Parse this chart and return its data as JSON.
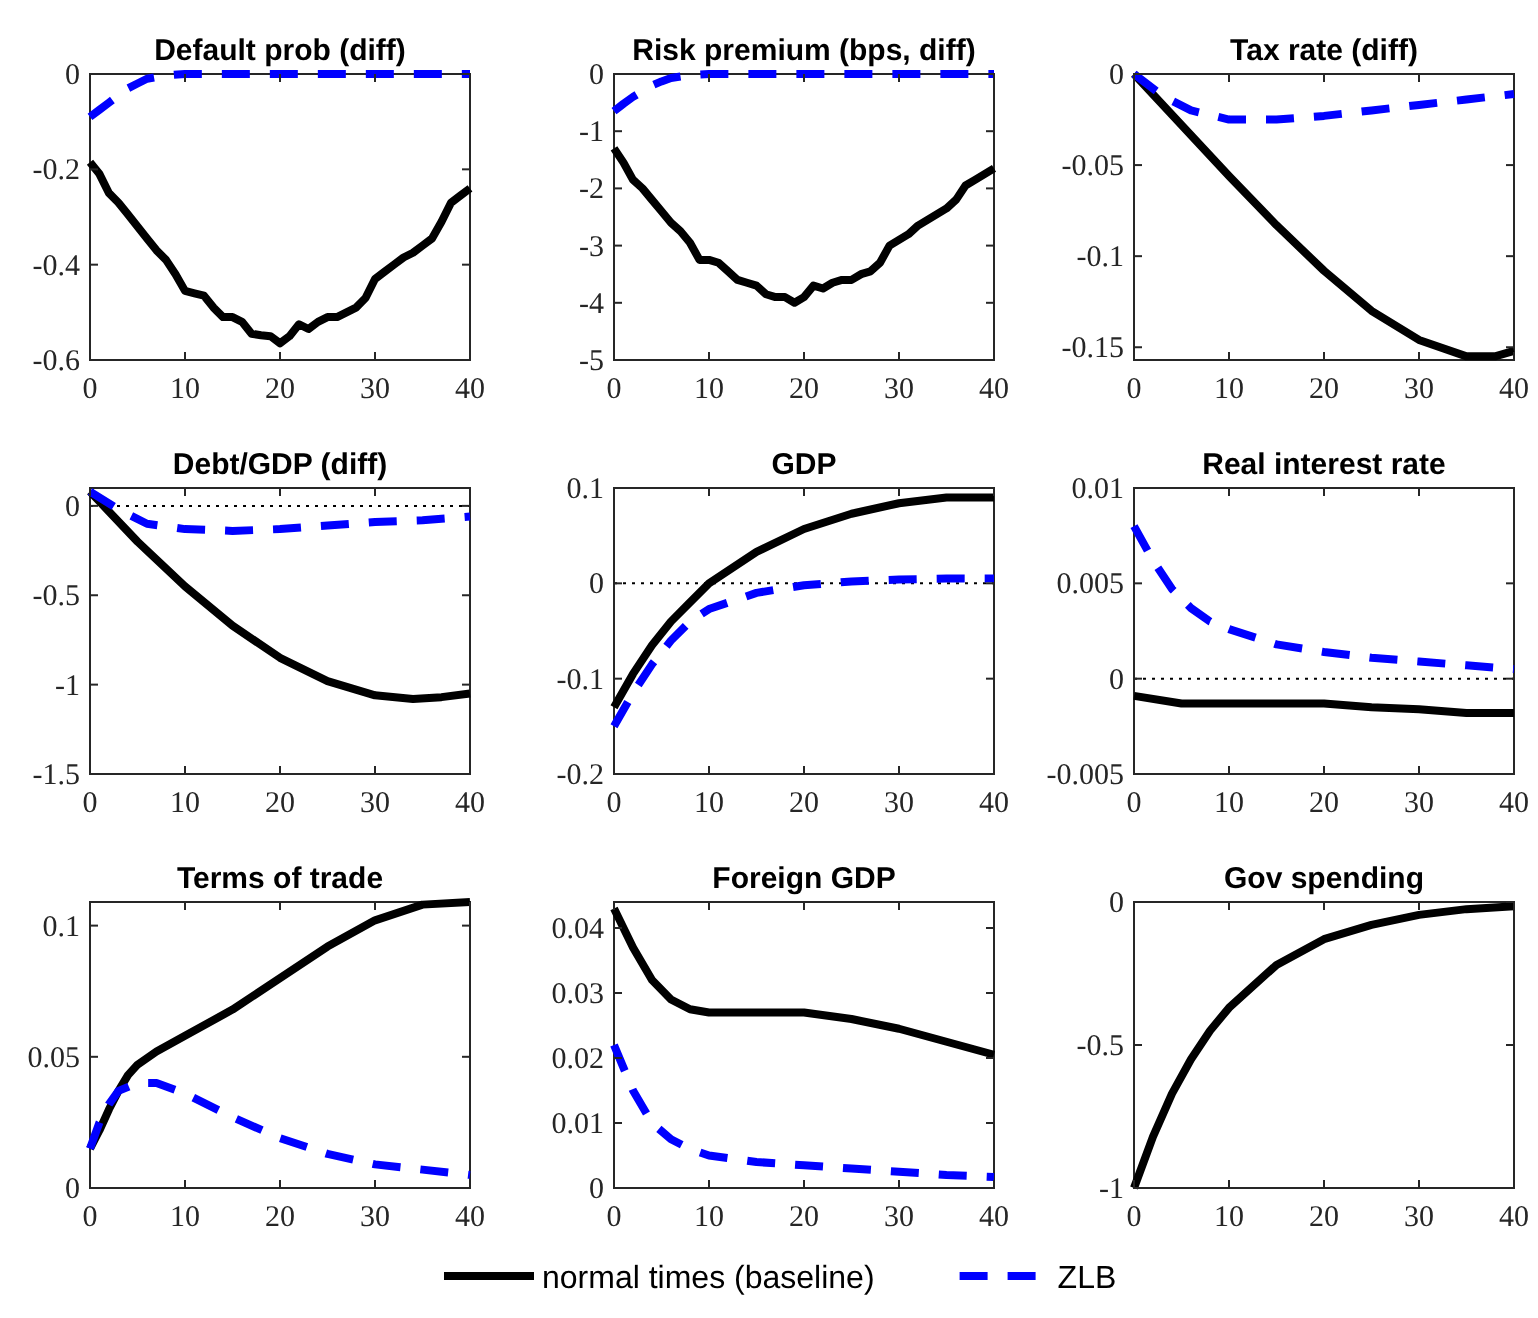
{
  "chart_data": [
    {
      "type": "line",
      "title": "Default prob (diff)",
      "xlim": [
        0,
        40
      ],
      "xticks": [
        0,
        10,
        20,
        30,
        40
      ],
      "ylim": [
        -0.6,
        0
      ],
      "yticks": [
        -0.6,
        -0.4,
        -0.2,
        0
      ],
      "series": [
        {
          "color": "#000000",
          "line_style": "solid",
          "x": [
            0,
            1,
            2,
            3,
            4,
            5,
            6,
            7,
            8,
            9,
            10,
            11,
            12,
            13,
            14,
            15,
            16,
            17,
            18,
            19,
            20,
            21,
            22,
            23,
            24,
            25,
            26,
            27,
            28,
            29,
            30,
            31,
            32,
            33,
            34,
            35,
            36,
            37,
            38,
            39,
            40
          ],
          "values": [
            -0.185,
            -0.21,
            -0.25,
            -0.27,
            -0.295,
            -0.32,
            -0.345,
            -0.37,
            -0.39,
            -0.42,
            -0.455,
            -0.46,
            -0.465,
            -0.49,
            -0.51,
            -0.51,
            -0.52,
            -0.545,
            -0.548,
            -0.55,
            -0.565,
            -0.55,
            -0.525,
            -0.535,
            -0.52,
            -0.51,
            -0.51,
            -0.5,
            -0.49,
            -0.47,
            -0.43,
            -0.415,
            -0.4,
            -0.385,
            -0.375,
            -0.36,
            -0.345,
            -0.31,
            -0.27,
            -0.255,
            -0.24
          ]
        },
        {
          "color": "#0000ff",
          "line_style": "dashed",
          "x": [
            0,
            1,
            2,
            3,
            4,
            5,
            6,
            8,
            10,
            15,
            20,
            25,
            30,
            35,
            40
          ],
          "values": [
            -0.09,
            -0.075,
            -0.06,
            -0.045,
            -0.03,
            -0.02,
            -0.01,
            -0.003,
            0,
            0,
            0,
            0,
            0,
            0,
            0
          ]
        }
      ]
    },
    {
      "type": "line",
      "title": "Risk premium (bps, diff)",
      "xlim": [
        0,
        40
      ],
      "xticks": [
        0,
        10,
        20,
        30,
        40
      ],
      "ylim": [
        -5,
        0
      ],
      "yticks": [
        -5,
        -4,
        -3,
        -2,
        -1,
        0
      ],
      "series": [
        {
          "color": "#000000",
          "line_style": "solid",
          "x": [
            0,
            1,
            2,
            3,
            4,
            5,
            6,
            7,
            8,
            9,
            10,
            11,
            12,
            13,
            14,
            15,
            16,
            17,
            18,
            19,
            20,
            21,
            22,
            23,
            24,
            25,
            26,
            27,
            28,
            29,
            30,
            31,
            32,
            33,
            34,
            35,
            36,
            37,
            38,
            39,
            40
          ],
          "values": [
            -1.3,
            -1.55,
            -1.85,
            -2.0,
            -2.2,
            -2.4,
            -2.6,
            -2.75,
            -2.95,
            -3.25,
            -3.25,
            -3.3,
            -3.45,
            -3.6,
            -3.65,
            -3.7,
            -3.85,
            -3.9,
            -3.9,
            -4.0,
            -3.9,
            -3.7,
            -3.75,
            -3.65,
            -3.6,
            -3.6,
            -3.5,
            -3.45,
            -3.3,
            -3.0,
            -2.9,
            -2.8,
            -2.65,
            -2.55,
            -2.45,
            -2.35,
            -2.2,
            -1.95,
            -1.85,
            -1.75,
            -1.65
          ]
        },
        {
          "color": "#0000ff",
          "line_style": "dashed",
          "x": [
            0,
            1,
            2,
            3,
            4,
            5,
            6,
            8,
            10,
            15,
            20,
            25,
            30,
            35,
            40
          ],
          "values": [
            -0.65,
            -0.52,
            -0.4,
            -0.3,
            -0.2,
            -0.13,
            -0.07,
            -0.02,
            0,
            0,
            0,
            0,
            0,
            0,
            0
          ]
        }
      ]
    },
    {
      "type": "line",
      "title": "Tax rate (diff)",
      "xlim": [
        0,
        40
      ],
      "xticks": [
        0,
        10,
        20,
        30,
        40
      ],
      "ylim": [
        -0.157,
        0
      ],
      "yticks": [
        -0.15,
        -0.1,
        -0.05,
        0
      ],
      "series": [
        {
          "color": "#000000",
          "line_style": "solid",
          "x": [
            0,
            5,
            10,
            15,
            20,
            25,
            30,
            35,
            38,
            40
          ],
          "values": [
            0,
            -0.028,
            -0.056,
            -0.083,
            -0.108,
            -0.13,
            -0.146,
            -0.155,
            -0.155,
            -0.152
          ]
        },
        {
          "color": "#0000ff",
          "line_style": "dashed",
          "x": [
            0,
            3,
            6,
            10,
            15,
            20,
            25,
            30,
            35,
            40
          ],
          "values": [
            0,
            -0.012,
            -0.02,
            -0.025,
            -0.025,
            -0.023,
            -0.02,
            -0.017,
            -0.014,
            -0.011
          ]
        }
      ]
    },
    {
      "type": "line",
      "title": "Debt/GDP (diff)",
      "xlim": [
        0,
        40
      ],
      "xticks": [
        0,
        10,
        20,
        30,
        40
      ],
      "ylim": [
        -1.5,
        0.1
      ],
      "yticks": [
        -1.5,
        -1,
        -0.5,
        0
      ],
      "ref_lines": [
        {
          "axis": "y",
          "value": 0,
          "line_style": "dotted"
        }
      ],
      "series": [
        {
          "color": "#000000",
          "line_style": "solid",
          "x": [
            0,
            5,
            10,
            15,
            20,
            25,
            30,
            34,
            37,
            40
          ],
          "values": [
            0.08,
            -0.2,
            -0.45,
            -0.67,
            -0.85,
            -0.98,
            -1.06,
            -1.08,
            -1.07,
            -1.05
          ]
        },
        {
          "color": "#0000ff",
          "line_style": "dashed",
          "x": [
            0,
            3,
            6,
            10,
            15,
            20,
            25,
            30,
            35,
            40
          ],
          "values": [
            0.08,
            -0.02,
            -0.1,
            -0.13,
            -0.14,
            -0.13,
            -0.11,
            -0.09,
            -0.08,
            -0.06
          ]
        }
      ]
    },
    {
      "type": "line",
      "title": "GDP",
      "xlim": [
        0,
        40
      ],
      "xticks": [
        0,
        10,
        20,
        30,
        40
      ],
      "ylim": [
        -0.2,
        0.1
      ],
      "yticks": [
        -0.2,
        -0.1,
        0,
        0.1
      ],
      "ref_lines": [
        {
          "axis": "y",
          "value": 0,
          "line_style": "dotted"
        }
      ],
      "series": [
        {
          "color": "#000000",
          "line_style": "solid",
          "x": [
            0,
            2,
            4,
            6,
            8,
            10,
            15,
            20,
            25,
            30,
            35,
            40
          ],
          "values": [
            -0.13,
            -0.095,
            -0.065,
            -0.04,
            -0.02,
            0,
            0.033,
            0.057,
            0.073,
            0.084,
            0.09,
            0.09
          ]
        },
        {
          "color": "#0000ff",
          "line_style": "dashed",
          "x": [
            0,
            2,
            4,
            6,
            8,
            10,
            15,
            20,
            25,
            30,
            35,
            40
          ],
          "values": [
            -0.15,
            -0.115,
            -0.085,
            -0.06,
            -0.04,
            -0.027,
            -0.01,
            -0.002,
            0.002,
            0.004,
            0.005,
            0.005
          ]
        }
      ]
    },
    {
      "type": "line",
      "title": "Real interest rate",
      "xlim": [
        0,
        40
      ],
      "xticks": [
        0,
        10,
        20,
        30,
        40
      ],
      "ylim": [
        -0.005,
        0.01
      ],
      "yticks": [
        -0.005,
        0,
        0.005,
        0.01
      ],
      "ref_lines": [
        {
          "axis": "y",
          "value": 0,
          "line_style": "dotted"
        }
      ],
      "series": [
        {
          "color": "#000000",
          "line_style": "solid",
          "x": [
            0,
            5,
            10,
            15,
            20,
            25,
            30,
            35,
            40
          ],
          "values": [
            -0.0009,
            -0.0013,
            -0.0013,
            -0.0013,
            -0.0013,
            -0.0015,
            -0.0016,
            -0.0018,
            -0.0018
          ]
        },
        {
          "color": "#0000ff",
          "line_style": "dashed",
          "x": [
            0,
            2,
            4,
            6,
            8,
            10,
            15,
            20,
            25,
            30,
            35,
            40
          ],
          "values": [
            0.008,
            0.0062,
            0.0047,
            0.0037,
            0.003,
            0.0026,
            0.0018,
            0.0014,
            0.0011,
            0.0009,
            0.0007,
            0.0005
          ]
        }
      ]
    },
    {
      "type": "line",
      "title": "Terms of trade",
      "xlim": [
        0,
        40
      ],
      "xticks": [
        0,
        10,
        20,
        30,
        40
      ],
      "ylim": [
        0,
        0.109
      ],
      "yticks": [
        0,
        0.05,
        0.1
      ],
      "series": [
        {
          "color": "#000000",
          "line_style": "solid",
          "x": [
            0,
            1,
            2,
            3,
            4,
            5,
            7,
            10,
            15,
            20,
            25,
            30,
            35,
            40
          ],
          "values": [
            0.015,
            0.022,
            0.03,
            0.037,
            0.043,
            0.047,
            0.052,
            0.058,
            0.068,
            0.08,
            0.092,
            0.102,
            0.108,
            0.109
          ]
        },
        {
          "color": "#0000ff",
          "line_style": "dashed",
          "x": [
            0,
            1,
            2,
            3,
            5,
            7,
            10,
            15,
            20,
            25,
            30,
            35,
            40
          ],
          "values": [
            0.015,
            0.025,
            0.032,
            0.037,
            0.04,
            0.04,
            0.036,
            0.027,
            0.019,
            0.013,
            0.009,
            0.007,
            0.005
          ]
        }
      ]
    },
    {
      "type": "line",
      "title": "Foreign GDP",
      "xlim": [
        0,
        40
      ],
      "xticks": [
        0,
        10,
        20,
        30,
        40
      ],
      "ylim": [
        0,
        0.044
      ],
      "yticks": [
        0,
        0.01,
        0.02,
        0.03,
        0.04
      ],
      "legend": "bottom",
      "series": [
        {
          "name": "normal times (baseline)",
          "color": "#000000",
          "line_style": "solid",
          "x": [
            0,
            2,
            4,
            6,
            8,
            10,
            15,
            20,
            25,
            30,
            35,
            40
          ],
          "values": [
            0.043,
            0.037,
            0.032,
            0.029,
            0.0275,
            0.027,
            0.027,
            0.027,
            0.026,
            0.0245,
            0.0225,
            0.0205
          ]
        },
        {
          "name": "ZLB",
          "color": "#0000ff",
          "line_style": "dashed",
          "x": [
            0,
            2,
            4,
            6,
            8,
            10,
            15,
            20,
            25,
            30,
            35,
            40
          ],
          "values": [
            0.022,
            0.015,
            0.01,
            0.0075,
            0.006,
            0.005,
            0.004,
            0.0035,
            0.003,
            0.0025,
            0.002,
            0.0017
          ]
        }
      ]
    },
    {
      "type": "line",
      "title": "Gov spending",
      "xlim": [
        0,
        40
      ],
      "xticks": [
        0,
        10,
        20,
        30,
        40
      ],
      "ylim": [
        -1,
        0
      ],
      "yticks": [
        -1,
        -0.5,
        0
      ],
      "series": [
        {
          "color": "#000000",
          "line_style": "solid",
          "x": [
            0,
            2,
            4,
            6,
            8,
            10,
            15,
            20,
            25,
            30,
            35,
            40
          ],
          "values": [
            -1,
            -0.82,
            -0.67,
            -0.55,
            -0.45,
            -0.37,
            -0.22,
            -0.13,
            -0.08,
            -0.045,
            -0.025,
            -0.015
          ]
        }
      ]
    }
  ]
}
